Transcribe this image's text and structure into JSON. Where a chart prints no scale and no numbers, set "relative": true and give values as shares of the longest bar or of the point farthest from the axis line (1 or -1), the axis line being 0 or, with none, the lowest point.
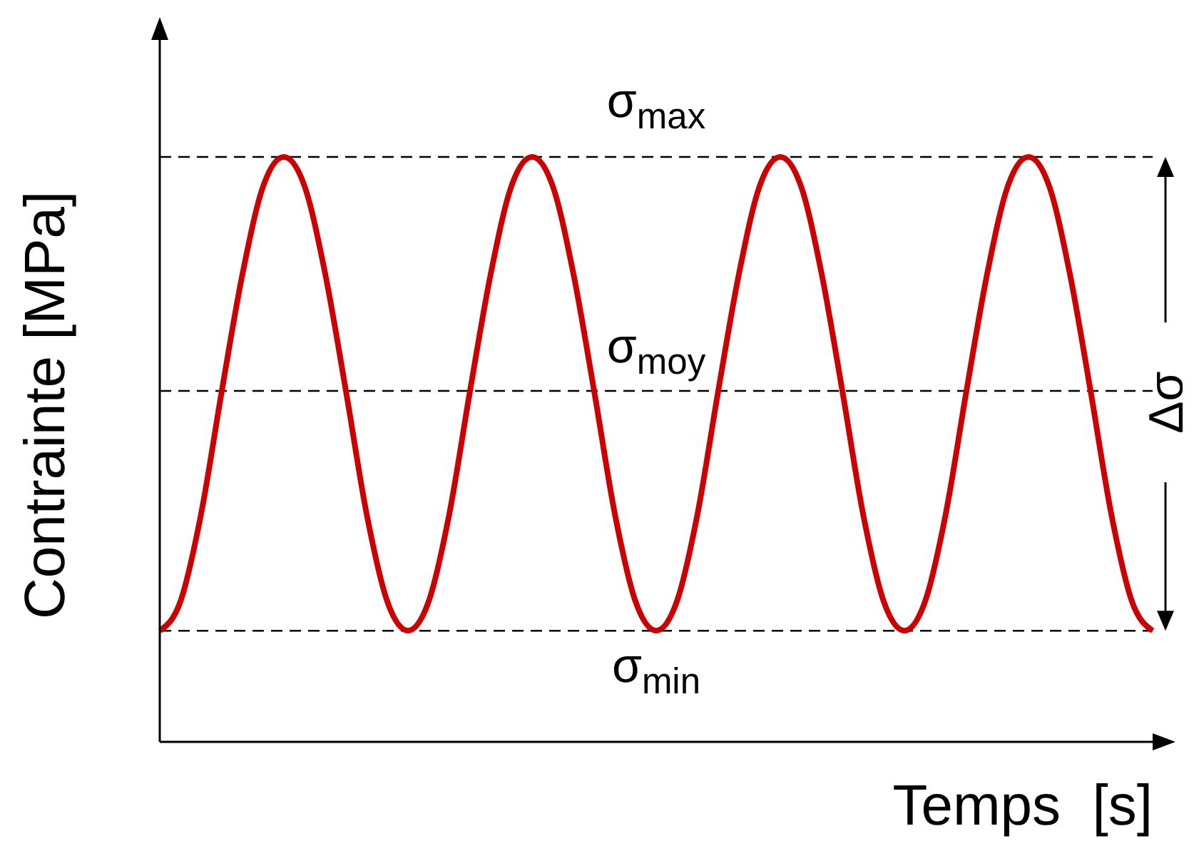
{
  "chart_data": {
    "type": "line",
    "relative": true,
    "xlabel": "Temps  [s]",
    "ylabel": "Contrainte [MPa]",
    "categories": [
      null,
      null,
      null,
      null,
      null,
      null,
      null,
      null,
      null,
      null,
      null,
      null,
      null,
      null,
      null,
      null,
      null,
      null,
      null,
      null,
      null,
      null,
      null,
      null,
      null,
      null,
      null,
      null,
      null,
      null,
      null,
      null,
      null,
      null,
      null,
      null,
      null,
      null,
      null,
      null,
      null,
      null,
      null,
      null,
      null,
      null,
      null,
      null,
      null
    ],
    "series": [
      {
        "color": "#cc0000",
        "values": [
          0.19,
          0.24,
          0.39,
          0.6,
          0.8,
          0.95,
          1,
          0.95,
          0.8,
          0.6,
          0.39,
          0.24,
          0.19,
          0.24,
          0.39,
          0.6,
          0.8,
          0.95,
          1,
          0.95,
          0.8,
          0.6,
          0.39,
          0.24,
          0.19,
          0.24,
          0.39,
          0.6,
          0.8,
          0.95,
          1,
          0.95,
          0.8,
          0.6,
          0.39,
          0.24,
          0.19,
          0.24,
          0.39,
          0.6,
          0.8,
          0.95,
          1,
          0.95,
          0.8,
          0.6,
          0.39,
          0.24,
          0.19
        ]
      }
    ],
    "ref_lines": [
      {
        "axis": "y",
        "value": 1,
        "label": "σ$_{max}$",
        "line_style": "dashed",
        "color": "#000000"
      },
      {
        "axis": "y",
        "value": 0.6,
        "label": "σ$_{moy}$",
        "line_style": "dashed",
        "color": "#000000"
      },
      {
        "axis": "y",
        "value": 0.19,
        "label": "σ$_{min}$",
        "line_style": "dashed",
        "color": "#000000"
      }
    ],
    "annotations": [
      "Δσ"
    ],
    "marker": "none",
    "line_style": "solid"
  }
}
